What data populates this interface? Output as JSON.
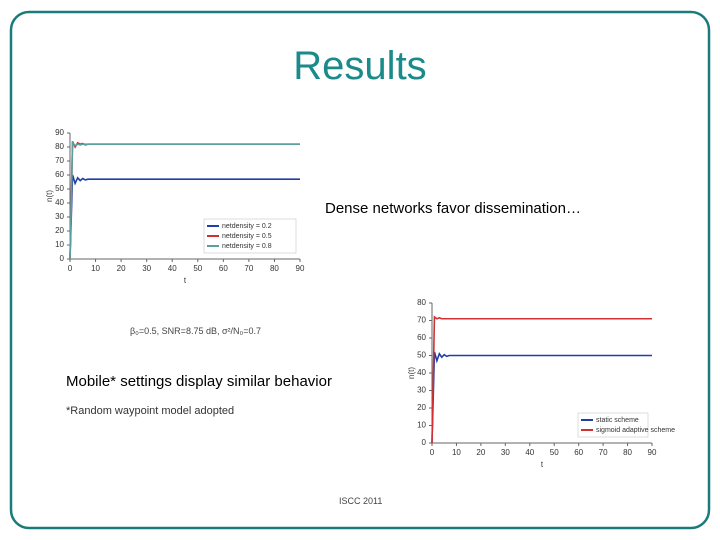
{
  "title": "Results",
  "captions": [
    "Dense networks favor dissemination…",
    "β₀=0.5, SNR=8.75 dB, σ²/N₀=0.7",
    "Mobile* settings display similar behavior",
    "*Random waypoint model adopted"
  ],
  "footer": "ISCC 2011",
  "chart_data": [
    {
      "type": "line",
      "xlabel": "t",
      "ylabel": "n(t)",
      "legend": "lower right",
      "x": [
        0,
        1,
        2,
        3,
        4,
        5,
        6,
        7,
        8,
        10,
        20,
        30,
        40,
        50,
        60,
        70,
        80,
        90
      ],
      "xlim": [
        0,
        90
      ],
      "xticks": [
        0,
        10,
        20,
        30,
        40,
        50,
        60,
        70,
        80,
        90
      ],
      "ylim": [
        0,
        90
      ],
      "yticks": [
        0,
        10,
        20,
        30,
        40,
        50,
        60,
        70,
        80,
        90
      ],
      "series": [
        {
          "name": "netdensity = 0.2",
          "color": "#1f3fa8",
          "values": [
            0,
            60,
            54,
            58,
            56,
            57.5,
            56.5,
            57,
            57,
            57,
            57,
            57,
            57,
            57,
            57,
            57,
            57,
            57
          ]
        },
        {
          "name": "netdensity = 0.5",
          "color": "#d23030",
          "values": [
            0,
            84,
            80,
            83,
            82,
            82.5,
            81.5,
            82,
            82,
            82,
            82,
            82,
            82,
            82,
            82,
            82,
            82,
            82
          ]
        },
        {
          "name": "netdensity = 0.8",
          "color": "#5aa0a0",
          "values": [
            0,
            83,
            81,
            82,
            81.5,
            82,
            82,
            82,
            82,
            82,
            82,
            82,
            82,
            82,
            82,
            82,
            82,
            82
          ]
        }
      ]
    },
    {
      "type": "line",
      "xlabel": "t",
      "ylabel": "n(t)",
      "legend": "lower right",
      "x": [
        0,
        1,
        2,
        3,
        4,
        5,
        6,
        7,
        8,
        10,
        20,
        30,
        40,
        50,
        60,
        70,
        80,
        90
      ],
      "xlim": [
        0,
        90
      ],
      "xticks": [
        0,
        10,
        20,
        30,
        40,
        50,
        60,
        70,
        80,
        90
      ],
      "ylim": [
        0,
        80
      ],
      "yticks": [
        0,
        10,
        20,
        30,
        40,
        50,
        60,
        70,
        80
      ],
      "series": [
        {
          "name": "static scheme",
          "color": "#1f3fa8",
          "values": [
            0,
            52,
            47,
            51,
            49,
            50.5,
            49.5,
            50,
            50,
            50,
            50,
            50,
            50,
            50,
            50,
            50,
            50,
            50
          ]
        },
        {
          "name": "sigmoid adaptive scheme",
          "color": "#d23030",
          "values": [
            0,
            72,
            71,
            71.5,
            71,
            71,
            71,
            71,
            71,
            71,
            71,
            71,
            71,
            71,
            71,
            71,
            71,
            71
          ]
        }
      ]
    }
  ]
}
